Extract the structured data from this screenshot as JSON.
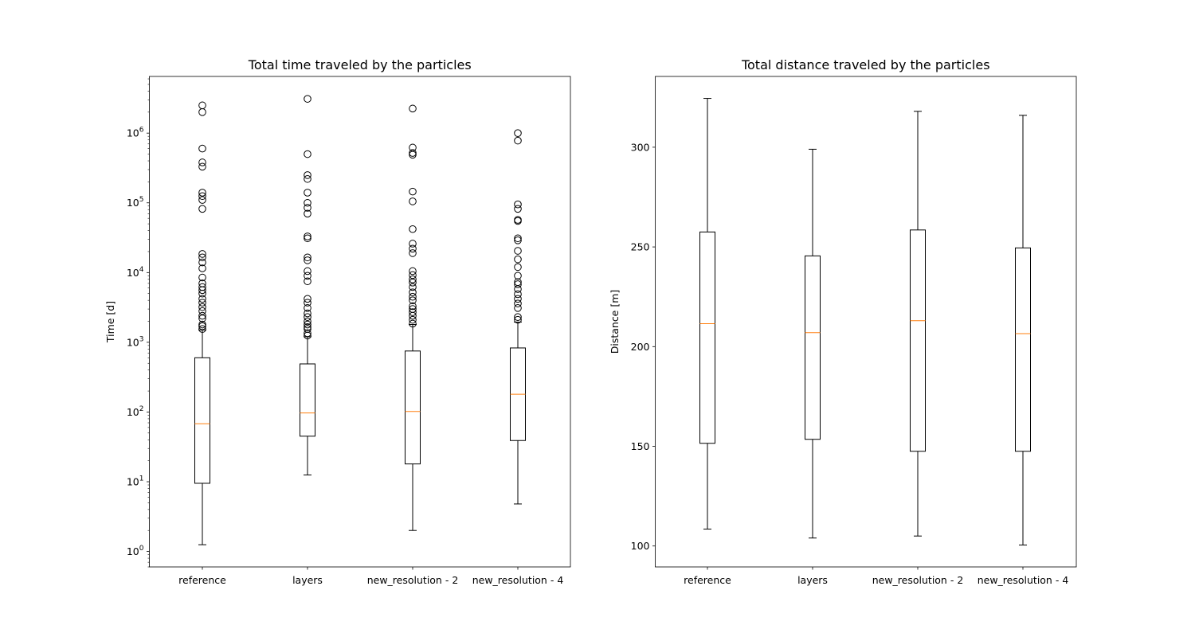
{
  "chart_data": [
    {
      "type": "box",
      "title": "Total time traveled by the particles",
      "xlabel": "",
      "ylabel": "Time [d]",
      "yscale": "log",
      "ylim": [
        0.6,
        6500000
      ],
      "yticks": [
        1,
        10,
        100,
        1000,
        10000,
        100000,
        1000000
      ],
      "ytick_labels": [
        {
          "base": "10",
          "exp": "0"
        },
        {
          "base": "10",
          "exp": "1"
        },
        {
          "base": "10",
          "exp": "2"
        },
        {
          "base": "10",
          "exp": "3"
        },
        {
          "base": "10",
          "exp": "4"
        },
        {
          "base": "10",
          "exp": "5"
        },
        {
          "base": "10",
          "exp": "6"
        }
      ],
      "categories": [
        "reference",
        "layers",
        "new_resolution - 2",
        "new_resolution - 4"
      ],
      "boxes": [
        {
          "whislo": 1.25,
          "q1": 9.5,
          "med": 68,
          "q3": 600,
          "whishi": 1500,
          "fliers": [
            1550,
            1700,
            1800,
            2200,
            2400,
            2800,
            3200,
            3700,
            4200,
            5000,
            5600,
            6200,
            7000,
            8500,
            11500,
            14000,
            16500,
            18500,
            82000,
            110000,
            125000,
            140000,
            330000,
            380000,
            600000,
            2000000,
            2500000
          ]
        },
        {
          "whislo": 12.5,
          "q1": 45,
          "med": 97,
          "q3": 490,
          "whishi": 1200,
          "fliers": [
            1250,
            1350,
            1550,
            1650,
            1800,
            2000,
            2300,
            2600,
            3100,
            3700,
            4200,
            7500,
            9000,
            10500,
            15000,
            16500,
            31000,
            33000,
            70000,
            85000,
            100000,
            140000,
            220000,
            250000,
            500000,
            3100000
          ]
        },
        {
          "whislo": 2.0,
          "q1": 18,
          "med": 102,
          "q3": 750,
          "whishi": 1800,
          "fliers": [
            1850,
            2100,
            2400,
            2700,
            3000,
            3300,
            4000,
            4500,
            5200,
            6200,
            7200,
            8000,
            9200,
            10500,
            19000,
            22000,
            26000,
            42000,
            105000,
            145000,
            490000,
            520000,
            620000,
            2250000
          ]
        },
        {
          "whislo": 4.8,
          "q1": 39,
          "med": 180,
          "q3": 830,
          "whishi": 1950,
          "fliers": [
            2100,
            2300,
            3100,
            3600,
            4200,
            4900,
            5800,
            6800,
            7300,
            9000,
            12000,
            15500,
            20500,
            29000,
            31000,
            55000,
            57000,
            82000,
            95000,
            780000,
            1000000
          ]
        }
      ]
    },
    {
      "type": "box",
      "title": "Total distance traveled by the particles",
      "xlabel": "",
      "ylabel": "Distance [m]",
      "yscale": "linear",
      "ylim": [
        89.5,
        335.5
      ],
      "yticks": [
        100,
        150,
        200,
        250,
        300
      ],
      "ytick_labels": [
        "100",
        "150",
        "200",
        "250",
        "300"
      ],
      "categories": [
        "reference",
        "layers",
        "new_resolution - 2",
        "new_resolution - 4"
      ],
      "boxes": [
        {
          "whislo": 108.5,
          "q1": 151.5,
          "med": 211.5,
          "q3": 257.5,
          "whishi": 324.5,
          "fliers": []
        },
        {
          "whislo": 104,
          "q1": 153.5,
          "med": 207,
          "q3": 245.5,
          "whishi": 299,
          "fliers": []
        },
        {
          "whislo": 105,
          "q1": 147.5,
          "med": 213,
          "q3": 258.5,
          "whishi": 318,
          "fliers": []
        },
        {
          "whislo": 100.5,
          "q1": 147.5,
          "med": 206.5,
          "q3": 249.5,
          "whishi": 316,
          "fliers": []
        }
      ]
    }
  ],
  "colors": {
    "box": "#000000",
    "median": "#ff7f0e",
    "flier": "#000000",
    "background": "#ffffff"
  }
}
